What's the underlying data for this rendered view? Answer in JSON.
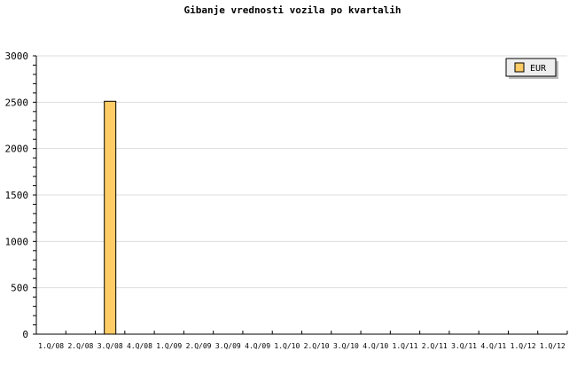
{
  "chart_data": {
    "type": "bar",
    "title": "Gibanje vrednosti vozila po kvartalih",
    "xlabel": "",
    "ylabel": "",
    "ylim": [
      0,
      3000
    ],
    "yticks": [
      "0",
      "500",
      "1000",
      "1500",
      "2000",
      "2500",
      "3000"
    ],
    "grid": true,
    "legend_position": "top-right",
    "categories": [
      "1.Q/08",
      "2.Q/08",
      "3.Q/08",
      "4.Q/08",
      "1.Q/09",
      "2.Q/09",
      "3.Q/09",
      "4.Q/09",
      "1.Q/10",
      "2.Q/10",
      "3.Q/10",
      "4.Q/10",
      "1.Q/11",
      "2.Q/11",
      "3.Q/11",
      "4.Q/11",
      "1.Q/12",
      "1.Q/12"
    ],
    "series": [
      {
        "name": "EUR",
        "color": "#ffcc66",
        "values": [
          0,
          0,
          2510,
          0,
          0,
          0,
          0,
          0,
          0,
          0,
          0,
          0,
          0,
          0,
          0,
          0,
          0,
          0
        ]
      }
    ]
  }
}
